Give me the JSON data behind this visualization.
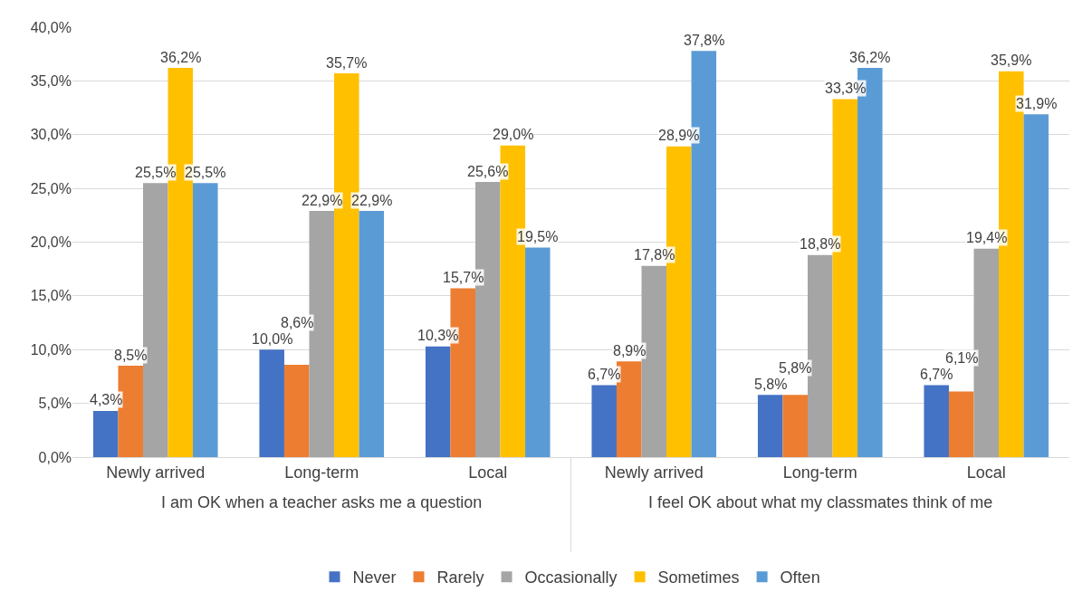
{
  "chart_data": {
    "type": "bar",
    "categories": [
      "Newly arrived",
      "Long-term",
      "Local",
      "Newly arrived",
      "Long-term",
      "Local"
    ],
    "annotations": [
      "I am OK when a teacher asks me a question",
      "I feel OK about what my classmates think of me"
    ],
    "series": [
      {
        "name": "Never",
        "color": "#4472c4",
        "values": [
          4.3,
          10.0,
          10.3,
          6.7,
          5.8,
          6.7
        ],
        "value_labels": [
          "4,3%",
          "10,0%",
          "10,3%",
          "6,7%",
          "5,8%",
          "6,7%"
        ]
      },
      {
        "name": "Rarely",
        "color": "#ed7d31",
        "values": [
          8.5,
          8.6,
          15.7,
          8.9,
          5.8,
          6.1
        ],
        "value_labels": [
          "8,5%",
          "8,6%",
          "15,7%",
          "8,9%",
          "5,8%",
          "6,1%"
        ]
      },
      {
        "name": "Occasionally",
        "color": "#a5a5a5",
        "values": [
          25.5,
          22.9,
          25.6,
          17.8,
          18.8,
          19.4
        ],
        "value_labels": [
          "25,5%",
          "22,9%",
          "25,6%",
          "17,8%",
          "18,8%",
          "19,4%"
        ]
      },
      {
        "name": "Sometimes",
        "color": "#ffc000",
        "values": [
          36.2,
          35.7,
          29.0,
          28.9,
          33.3,
          35.9
        ],
        "value_labels": [
          "36,2%",
          "35,7%",
          "29,0%",
          "28,9%",
          "33,3%",
          "35,9%"
        ]
      },
      {
        "name": "Often",
        "color": "#5b9bd5",
        "values": [
          25.5,
          22.9,
          19.5,
          37.8,
          36.2,
          31.9
        ],
        "value_labels": [
          "25,5%",
          "22,9%",
          "19,5%",
          "37,8%",
          "36,2%",
          "31,9%"
        ]
      }
    ],
    "ylim": [
      0,
      40
    ],
    "yticks": [
      {
        "value": 0,
        "label": "0,0%"
      },
      {
        "value": 5,
        "label": "5,0%"
      },
      {
        "value": 10,
        "label": "10,0%"
      },
      {
        "value": 15,
        "label": "15,0%"
      },
      {
        "value": 20,
        "label": "20,0%"
      },
      {
        "value": 25,
        "label": "25,0%"
      },
      {
        "value": 30,
        "label": "30,0%"
      },
      {
        "value": 35,
        "label": "35,0%"
      },
      {
        "value": 40,
        "label": "40,0%"
      }
    ],
    "grid": "y",
    "legend": "bottom"
  }
}
